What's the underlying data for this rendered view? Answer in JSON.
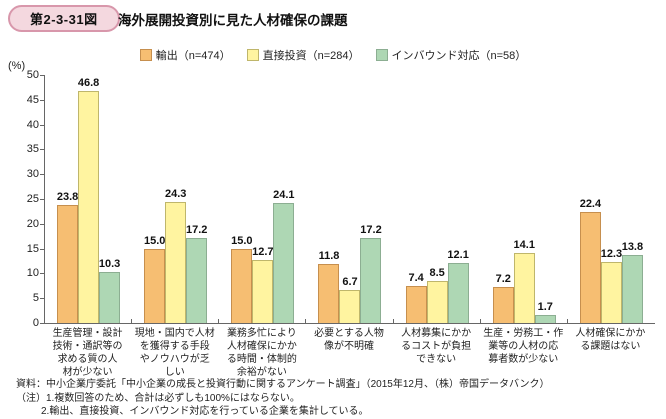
{
  "header": {
    "badge": "第2-3-31図",
    "title": "海外展開投資別に見た人材確保の課題"
  },
  "chart_data": {
    "type": "bar",
    "title": "海外展開投資別に見た人材確保の課題",
    "ylabel": "(%)",
    "ylim": [
      0,
      50
    ],
    "ytick_step": 5,
    "grid": false,
    "legend_position": "top-center",
    "categories": [
      "生産管理・設計技術・通訳等の求める質の人材が少ない",
      "現地・国内で人材を獲得する手段やノウハウが乏しい",
      "業務多忙により人材確保にかかる時間・体制的余裕がない",
      "必要とする人物像が不明確",
      "人材募集にかかるコストが負担できない",
      "生産・労務工・作業等の人材の応募者数が少ない",
      "人材確保にかかる課題はない"
    ],
    "category_lines": [
      [
        "生産管理・設計",
        "技術・通訳等の",
        "求める質の人",
        "材が少ない"
      ],
      [
        "現地・国内で人材",
        "を獲得する手段",
        "やノウハウが乏",
        "しい"
      ],
      [
        "業務多忙により",
        "人材確保にかか",
        "る時間・体制的",
        "余裕がない"
      ],
      [
        "必要とする人物",
        "像が不明確"
      ],
      [
        "人材募集にかか",
        "るコストが負担",
        "できない"
      ],
      [
        "生産・労務工・作",
        "業等の人材の応",
        "募者数が少ない"
      ],
      [
        "人材確保にかか",
        "る課題はない"
      ]
    ],
    "series": [
      {
        "name": "輸出（n=474）",
        "color": "#f6be72",
        "border_color": "#c68f4e",
        "values": [
          23.8,
          15.0,
          15.0,
          11.8,
          7.4,
          7.2,
          22.4
        ]
      },
      {
        "name": "直接投資（n=284）",
        "color": "#fff4a0",
        "border_color": "#bfb66b",
        "values": [
          46.8,
          24.3,
          12.7,
          6.7,
          8.5,
          14.1,
          12.3
        ]
      },
      {
        "name": "インバウンド対応（n=58）",
        "color": "#aed7b4",
        "border_color": "#8cae92",
        "values": [
          10.3,
          17.2,
          24.1,
          17.2,
          12.1,
          1.7,
          13.8
        ]
      }
    ]
  },
  "footnotes": {
    "source": "資料：中小企業庁委託「中小企業の成長と投資行動に関するアンケート調査」（2015年12月、（株）帝国データバンク）",
    "note1": "（注）1.複数回答のため、合計は必ずしも100%にはならない。",
    "note2": "2.輸出、直接投資、インバウンド対応を行っている企業を集計している。"
  },
  "colors": {
    "badge_border": "#d897ab",
    "badge_fill": "#f4d8df",
    "axis": "#666666",
    "text": "#222222"
  }
}
